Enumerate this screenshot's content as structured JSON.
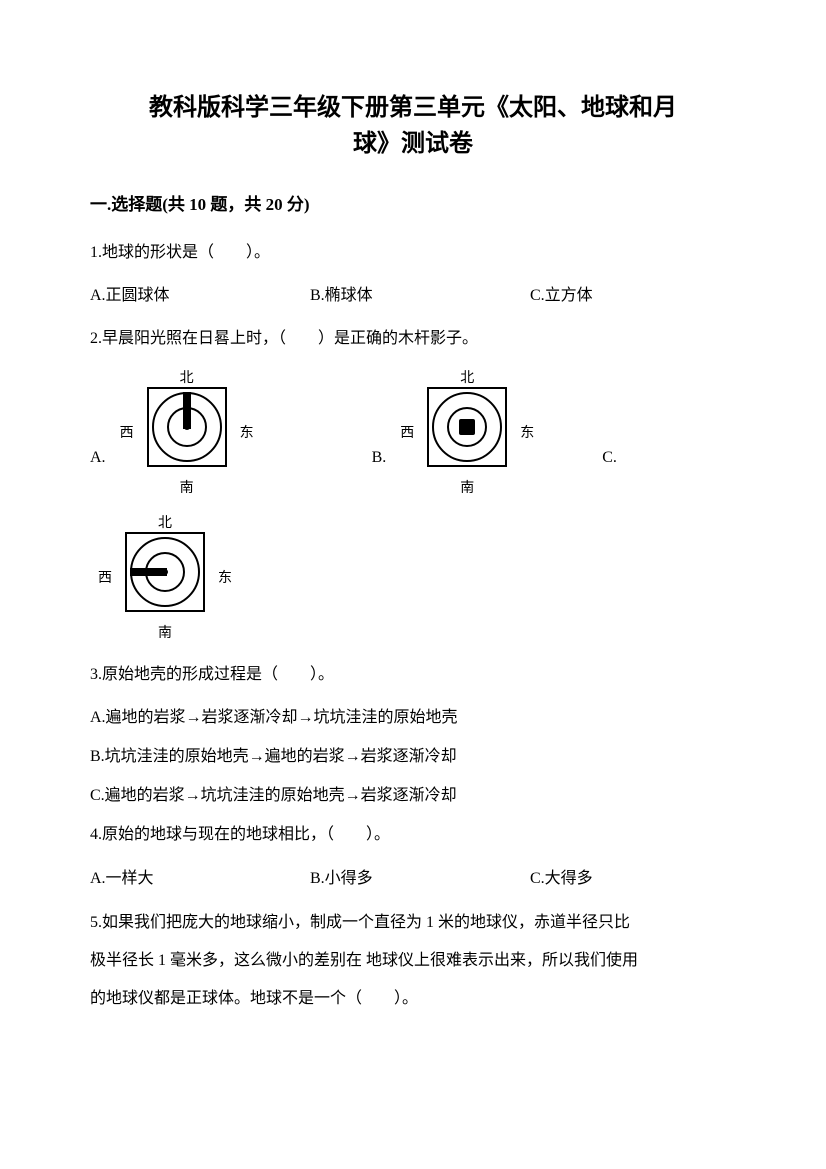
{
  "title_line1": "教科版科学三年级下册第三单元《太阳、地球和月",
  "title_line2": "球》测试卷",
  "section1": {
    "header": "一.选择题(共 10 题，共 20 分)"
  },
  "q1": {
    "text": "1.地球的形状是（　　）。",
    "optA": "A.正圆球体",
    "optB": "B.椭球体",
    "optC": "C.立方体"
  },
  "q2": {
    "text": "2.早晨阳光照在日晷上时，（　　）是正确的木杆影子。",
    "labelA": "A.",
    "labelB": "B.",
    "labelC": "C.",
    "compass": {
      "north": "北",
      "south": "南",
      "east": "东",
      "west": "西"
    }
  },
  "q3": {
    "text": "3.原始地壳的形成过程是（　　）。",
    "optA": "A.遍地的岩浆→岩浆逐渐冷却→坑坑洼洼的原始地壳",
    "optB": "B.坑坑洼洼的原始地壳→遍地的岩浆→岩浆逐渐冷却",
    "optC": "C.遍地的岩浆→坑坑洼洼的原始地壳→岩浆逐渐冷却"
  },
  "q4": {
    "text": "4.原始的地球与现在的地球相比，（　　）。",
    "optA": "A.一样大",
    "optB": "B.小得多",
    "optC": "C.大得多"
  },
  "q5": {
    "line1": "5.如果我们把庞大的地球缩小，制成一个直径为 1 米的地球仪，赤道半径只比",
    "line2": "极半径长 1 毫米多，这么微小的差别在  地球仪上很难表示出来，所以我们使用",
    "line3": "的地球仪都是正球体。地球不是一个（　　）。"
  }
}
